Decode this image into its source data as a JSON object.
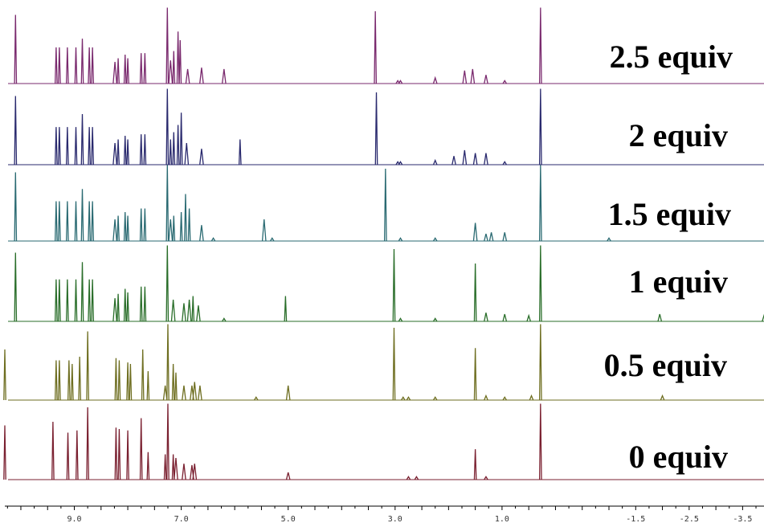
{
  "chart_data": {
    "type": "line",
    "title": "",
    "xlabel": "",
    "ylabel": "",
    "x_reversed": true,
    "xlim": [
      10.3,
      -3.9
    ],
    "x_ticks": [
      9.0,
      7.0,
      5.0,
      3.0,
      1.0,
      -1.5,
      -2.5,
      -3.5
    ],
    "x_tick_labels": [
      "9.0",
      "7.0",
      "5.0",
      "3.0",
      "1.0",
      "-1.5",
      "-2.5",
      "-3.5"
    ],
    "grid": false,
    "legend": "right-of-each-trace",
    "series": [
      {
        "name": "2.5 equiv",
        "color": "#7a2a6e",
        "peaks": [
          [
            10.1,
            0.95
          ],
          [
            9.34,
            0.5
          ],
          [
            9.28,
            0.5
          ],
          [
            9.13,
            0.5
          ],
          [
            8.97,
            0.5
          ],
          [
            8.85,
            0.62
          ],
          [
            8.72,
            0.5
          ],
          [
            8.66,
            0.5
          ],
          [
            8.24,
            0.3
          ],
          [
            8.18,
            0.35
          ],
          [
            8.05,
            0.4
          ],
          [
            8.0,
            0.35
          ],
          [
            7.75,
            0.42
          ],
          [
            7.68,
            0.42
          ],
          [
            7.26,
            1.05
          ],
          [
            7.2,
            0.32
          ],
          [
            7.14,
            0.45
          ],
          [
            7.06,
            0.72
          ],
          [
            7.02,
            0.6
          ],
          [
            6.88,
            0.2
          ],
          [
            6.62,
            0.22
          ],
          [
            6.2,
            0.2
          ],
          [
            3.37,
            1.0
          ],
          [
            2.95,
            0.04
          ],
          [
            2.9,
            0.04
          ],
          [
            2.25,
            0.08
          ],
          [
            1.7,
            0.18
          ],
          [
            1.55,
            0.2
          ],
          [
            1.3,
            0.12
          ],
          [
            0.95,
            0.04
          ],
          [
            0.28,
            1.05
          ]
        ]
      },
      {
        "name": "2  equiv",
        "color": "#2a2a6e",
        "peaks": [
          [
            10.1,
            0.95
          ],
          [
            9.34,
            0.52
          ],
          [
            9.28,
            0.52
          ],
          [
            9.13,
            0.52
          ],
          [
            8.97,
            0.52
          ],
          [
            8.85,
            0.7
          ],
          [
            8.72,
            0.52
          ],
          [
            8.66,
            0.52
          ],
          [
            8.24,
            0.3
          ],
          [
            8.18,
            0.35
          ],
          [
            8.05,
            0.4
          ],
          [
            8.0,
            0.35
          ],
          [
            7.75,
            0.42
          ],
          [
            7.68,
            0.42
          ],
          [
            7.26,
            1.05
          ],
          [
            7.2,
            0.35
          ],
          [
            7.14,
            0.45
          ],
          [
            7.06,
            0.55
          ],
          [
            7.0,
            0.72
          ],
          [
            6.9,
            0.3
          ],
          [
            6.62,
            0.22
          ],
          [
            5.9,
            0.35
          ],
          [
            3.35,
            1.0
          ],
          [
            2.95,
            0.04
          ],
          [
            2.9,
            0.04
          ],
          [
            2.25,
            0.06
          ],
          [
            1.9,
            0.12
          ],
          [
            1.7,
            0.2
          ],
          [
            1.5,
            0.16
          ],
          [
            1.3,
            0.16
          ],
          [
            0.95,
            0.04
          ],
          [
            0.28,
            1.05
          ]
        ]
      },
      {
        "name": "1.5 equiv",
        "color": "#2a6a72",
        "peaks": [
          [
            10.1,
            0.95
          ],
          [
            9.34,
            0.55
          ],
          [
            9.28,
            0.55
          ],
          [
            9.13,
            0.55
          ],
          [
            8.97,
            0.55
          ],
          [
            8.85,
            0.72
          ],
          [
            8.72,
            0.55
          ],
          [
            8.66,
            0.55
          ],
          [
            8.24,
            0.3
          ],
          [
            8.18,
            0.35
          ],
          [
            8.05,
            0.4
          ],
          [
            8.0,
            0.35
          ],
          [
            7.75,
            0.45
          ],
          [
            7.68,
            0.45
          ],
          [
            7.26,
            1.05
          ],
          [
            7.2,
            0.3
          ],
          [
            7.14,
            0.35
          ],
          [
            7.0,
            0.4
          ],
          [
            6.92,
            0.65
          ],
          [
            6.85,
            0.45
          ],
          [
            6.62,
            0.22
          ],
          [
            6.4,
            0.04
          ],
          [
            5.45,
            0.3
          ],
          [
            5.3,
            0.04
          ],
          [
            3.18,
            1.0
          ],
          [
            2.9,
            0.04
          ],
          [
            2.25,
            0.04
          ],
          [
            1.5,
            0.25
          ],
          [
            1.3,
            0.1
          ],
          [
            1.2,
            0.12
          ],
          [
            0.95,
            0.12
          ],
          [
            0.28,
            1.05
          ],
          [
            -1.0,
            0.04
          ]
        ]
      },
      {
        "name": "1  equiv",
        "color": "#2a6e2a",
        "peaks": [
          [
            10.1,
            0.95
          ],
          [
            9.34,
            0.58
          ],
          [
            9.28,
            0.58
          ],
          [
            9.13,
            0.58
          ],
          [
            8.97,
            0.58
          ],
          [
            8.85,
            0.82
          ],
          [
            8.72,
            0.58
          ],
          [
            8.66,
            0.58
          ],
          [
            8.24,
            0.32
          ],
          [
            8.18,
            0.38
          ],
          [
            8.05,
            0.45
          ],
          [
            8.0,
            0.4
          ],
          [
            7.75,
            0.48
          ],
          [
            7.68,
            0.48
          ],
          [
            7.26,
            1.05
          ],
          [
            7.15,
            0.3
          ],
          [
            6.95,
            0.25
          ],
          [
            6.85,
            0.3
          ],
          [
            6.78,
            0.35
          ],
          [
            6.68,
            0.22
          ],
          [
            6.2,
            0.04
          ],
          [
            5.05,
            0.35
          ],
          [
            3.02,
            1.0
          ],
          [
            2.9,
            0.04
          ],
          [
            2.25,
            0.04
          ],
          [
            1.5,
            0.8
          ],
          [
            1.3,
            0.12
          ],
          [
            0.95,
            0.1
          ],
          [
            0.5,
            0.08
          ],
          [
            0.28,
            1.05
          ],
          [
            -1.95,
            0.1
          ],
          [
            -3.9,
            0.08
          ]
        ]
      },
      {
        "name": "0.5 equiv",
        "color": "#6e6e20",
        "peaks": [
          [
            10.3,
            0.7
          ],
          [
            9.34,
            0.55
          ],
          [
            9.28,
            0.55
          ],
          [
            9.1,
            0.55
          ],
          [
            9.04,
            0.5
          ],
          [
            8.9,
            0.6
          ],
          [
            8.75,
            0.95
          ],
          [
            8.22,
            0.58
          ],
          [
            8.16,
            0.55
          ],
          [
            8.0,
            0.52
          ],
          [
            7.95,
            0.5
          ],
          [
            7.72,
            0.7
          ],
          [
            7.62,
            0.4
          ],
          [
            7.3,
            0.2
          ],
          [
            7.25,
            1.05
          ],
          [
            7.15,
            0.5
          ],
          [
            7.1,
            0.38
          ],
          [
            6.95,
            0.2
          ],
          [
            6.8,
            0.2
          ],
          [
            6.75,
            0.25
          ],
          [
            6.65,
            0.2
          ],
          [
            5.6,
            0.04
          ],
          [
            5.0,
            0.2
          ],
          [
            3.02,
            1.0
          ],
          [
            2.85,
            0.04
          ],
          [
            2.75,
            0.04
          ],
          [
            2.25,
            0.04
          ],
          [
            1.5,
            0.72
          ],
          [
            1.3,
            0.06
          ],
          [
            0.95,
            0.04
          ],
          [
            0.45,
            0.06
          ],
          [
            0.28,
            1.05
          ],
          [
            -2.0,
            0.06
          ]
        ]
      },
      {
        "name": "0  equiv",
        "color": "#7a2030",
        "peaks": [
          [
            10.3,
            0.75
          ],
          [
            9.4,
            0.8
          ],
          [
            9.12,
            0.65
          ],
          [
            8.95,
            0.68
          ],
          [
            8.75,
            1.0
          ],
          [
            8.22,
            0.72
          ],
          [
            8.16,
            0.7
          ],
          [
            8.0,
            0.68
          ],
          [
            7.75,
            0.85
          ],
          [
            7.62,
            0.38
          ],
          [
            7.3,
            0.35
          ],
          [
            7.25,
            1.05
          ],
          [
            7.15,
            0.35
          ],
          [
            7.1,
            0.3
          ],
          [
            6.95,
            0.22
          ],
          [
            6.8,
            0.2
          ],
          [
            6.75,
            0.22
          ],
          [
            5.0,
            0.1
          ],
          [
            2.75,
            0.04
          ],
          [
            2.6,
            0.04
          ],
          [
            1.5,
            0.42
          ],
          [
            1.3,
            0.04
          ],
          [
            0.28,
            1.05
          ]
        ]
      }
    ]
  }
}
